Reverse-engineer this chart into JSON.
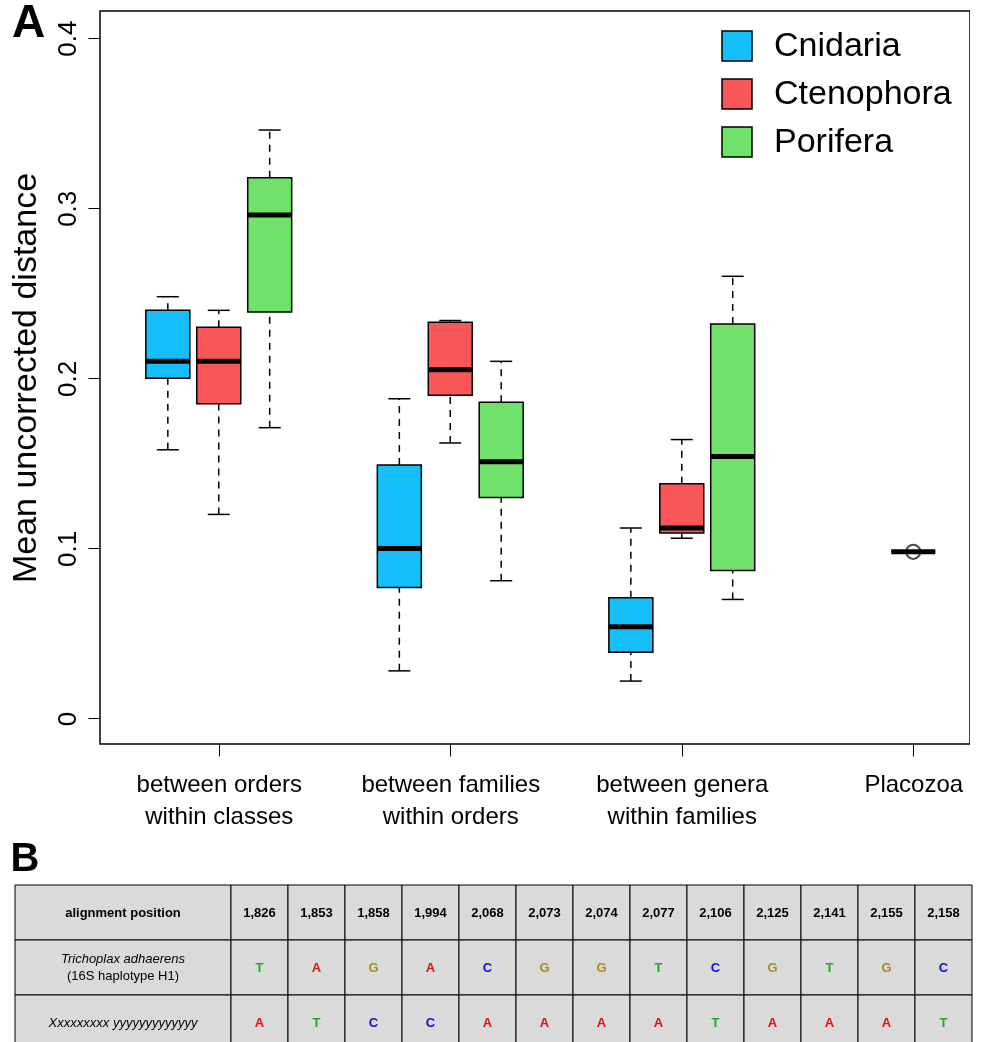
{
  "chart_data": [
    {
      "type": "box",
      "title": "A",
      "ylabel": "Mean uncorrected distance",
      "categories": [
        "between orders\nwithin classes",
        "between families\nwithin orders",
        "between genera\nwithin families",
        "Placozoa"
      ],
      "ylim": [
        -0.015,
        0.416
      ],
      "yticks": [
        0,
        0.1,
        0.2,
        0.3,
        0.4
      ],
      "legend": "top right",
      "line_style": "dashed",
      "series": [
        {
          "name": "Cnidaria",
          "color": "#16bffa",
          "boxes": [
            {
              "low": 0.158,
              "q1": 0.2,
              "median": 0.21,
              "q3": 0.24,
              "high": 0.248
            },
            {
              "low": 0.028,
              "q1": 0.077,
              "median": 0.1,
              "q3": 0.149,
              "high": 0.188
            },
            {
              "low": 0.022,
              "q1": 0.039,
              "median": 0.054,
              "q3": 0.071,
              "high": 0.112
            },
            null
          ]
        },
        {
          "name": "Ctenophora",
          "color": "#f95757",
          "boxes": [
            {
              "low": 0.12,
              "q1": 0.185,
              "median": 0.21,
              "q3": 0.23,
              "high": 0.24
            },
            {
              "low": 0.162,
              "q1": 0.19,
              "median": 0.205,
              "q3": 0.233,
              "high": 0.234
            },
            {
              "low": 0.106,
              "q1": 0.109,
              "median": 0.112,
              "q3": 0.138,
              "high": 0.164
            },
            null
          ]
        },
        {
          "name": "Porifera",
          "color": "#70e26c",
          "boxes": [
            {
              "low": 0.171,
              "q1": 0.239,
              "median": 0.296,
              "q3": 0.318,
              "high": 0.346
            },
            {
              "low": 0.081,
              "q1": 0.13,
              "median": 0.151,
              "q3": 0.186,
              "high": 0.21
            },
            {
              "low": 0.07,
              "q1": 0.087,
              "median": 0.154,
              "q3": 0.232,
              "high": 0.26
            },
            null
          ]
        },
        {
          "color": "#000000",
          "boxes": [
            null,
            null,
            null,
            {
              "low": 0.098,
              "q1": 0.098,
              "median": 0.098,
              "q3": 0.098,
              "high": 0.098,
              "outliers": [
                0.098
              ]
            }
          ]
        }
      ]
    },
    {
      "type": "heatmap",
      "title": "B",
      "xlabel": "alignment position",
      "categories": [
        "1,826",
        "1,853",
        "1,858",
        "1,994",
        "2,068",
        "2,073",
        "2,074",
        "2,077",
        "2,106",
        "2,125",
        "2,141",
        "2,155",
        "2,158"
      ],
      "y_categories": [
        "Trichoplax adhaerens\n(16S haplotype H1)",
        "Xxxxxxxxx yyyyyyyyyyyyy"
      ],
      "cells": [
        [
          null,
          null,
          null,
          null,
          null,
          null,
          null,
          null,
          null,
          null,
          null,
          null,
          null
        ],
        [
          null,
          null,
          null,
          null,
          null,
          null,
          null,
          null,
          null,
          null,
          null,
          null,
          null
        ]
      ],
      "cell_labels": [
        [
          "T",
          "A",
          "G",
          "A",
          "C",
          "G",
          "G",
          "T",
          "C",
          "G",
          "T",
          "G",
          "C"
        ],
        [
          "A",
          "T",
          "C",
          "C",
          "A",
          "A",
          "A",
          "A",
          "T",
          "A",
          "A",
          "A",
          "T"
        ]
      ],
      "colors": [
        [
          "#1faa1f",
          "#e01010",
          "#a88d1c",
          "#e01010",
          "#1010d0",
          "#a88d1c",
          "#a88d1c",
          "#1faa1f",
          "#1010d0",
          "#a88d1c",
          "#1faa1f",
          "#a88d1c",
          "#1010d0"
        ],
        [
          "#e01010",
          "#1faa1f",
          "#1010d0",
          "#1010d0",
          "#e01010",
          "#e01010",
          "#e01010",
          "#e01010",
          "#1faa1f",
          "#e01010",
          "#e01010",
          "#e01010",
          "#1faa1f"
        ]
      ]
    }
  ]
}
